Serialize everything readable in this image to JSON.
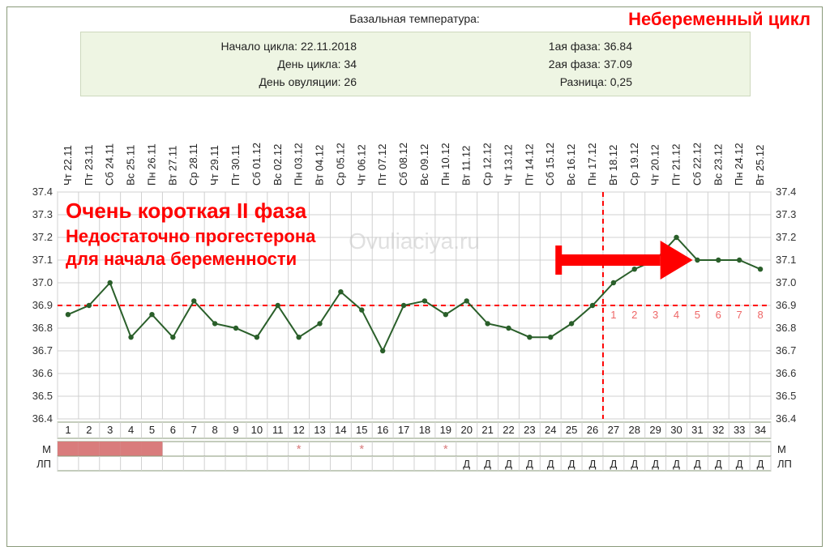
{
  "header": {
    "title": "Базальная температура:",
    "red_label": "Небеременный цикл"
  },
  "info": {
    "left": [
      "Начало цикла: 22.11.2018",
      "День цикла: 34",
      "День овуляции: 26"
    ],
    "right": [
      "1ая фаза: 36.84",
      "2ая фаза: 37.09",
      "Разница: 0,25"
    ]
  },
  "chart": {
    "type": "line",
    "watermark": "Ovuliaciya.ru",
    "annotation": {
      "line1": "Очень короткая II фаза",
      "line2": "Недостаточно прогестерона",
      "line3": "для начала беременности",
      "color": "#ff0000",
      "fontsize_l1": 26,
      "fontsize_rest": 22
    },
    "y": {
      "min": 36.4,
      "max": 37.4,
      "step": 0.1
    },
    "ovulation_day": 26,
    "coverline": 36.9,
    "series_color": "#2a5f2a",
    "coverline_color": "#ff0000",
    "ovline_color": "#ff0000",
    "grid_color": "#d0d0d0",
    "bg": "#ffffff",
    "border": "#8a9a7a",
    "menses_color": "#d97c7c",
    "star_color": "#d97c7c",
    "days": [
      {
        "n": 1,
        "dow": "Чт",
        "date": "22.11",
        "t": 36.86,
        "m": true
      },
      {
        "n": 2,
        "dow": "Пт",
        "date": "23.11",
        "t": 36.9,
        "m": true
      },
      {
        "n": 3,
        "dow": "Сб",
        "date": "24.11",
        "t": 37.0,
        "m": true
      },
      {
        "n": 4,
        "dow": "Вс",
        "date": "25.11",
        "t": 36.76,
        "m": true
      },
      {
        "n": 5,
        "dow": "Пн",
        "date": "26.11",
        "t": 36.86,
        "m": true
      },
      {
        "n": 6,
        "dow": "Вт",
        "date": "27.11",
        "t": 36.76
      },
      {
        "n": 7,
        "dow": "Ср",
        "date": "28.11",
        "t": 36.92
      },
      {
        "n": 8,
        "dow": "Чт",
        "date": "29.11",
        "t": 36.82
      },
      {
        "n": 9,
        "dow": "Пт",
        "date": "30.11",
        "t": 36.8
      },
      {
        "n": 10,
        "dow": "Сб",
        "date": "01.12",
        "t": 36.76
      },
      {
        "n": 11,
        "dow": "Вс",
        "date": "02.12",
        "t": 36.9
      },
      {
        "n": 12,
        "dow": "Пн",
        "date": "03.12",
        "t": 36.76,
        "star": true
      },
      {
        "n": 13,
        "dow": "Вт",
        "date": "04.12",
        "t": 36.82
      },
      {
        "n": 14,
        "dow": "Ср",
        "date": "05.12",
        "t": 36.96
      },
      {
        "n": 15,
        "dow": "Чт",
        "date": "06.12",
        "t": 36.88,
        "star": true
      },
      {
        "n": 16,
        "dow": "Пт",
        "date": "07.12",
        "t": 36.7
      },
      {
        "n": 17,
        "dow": "Сб",
        "date": "08.12",
        "t": 36.9
      },
      {
        "n": 18,
        "dow": "Вс",
        "date": "09.12",
        "t": 36.92
      },
      {
        "n": 19,
        "dow": "Пн",
        "date": "10.12",
        "t": 36.86,
        "star": true
      },
      {
        "n": 20,
        "dow": "Вт",
        "date": "11.12",
        "t": 36.92,
        "d": true
      },
      {
        "n": 21,
        "dow": "Ср",
        "date": "12.12",
        "t": 36.82,
        "d": true
      },
      {
        "n": 22,
        "dow": "Чт",
        "date": "13.12",
        "t": 36.8,
        "d": true
      },
      {
        "n": 23,
        "dow": "Пт",
        "date": "14.12",
        "t": 36.76,
        "d": true
      },
      {
        "n": 24,
        "dow": "Сб",
        "date": "15.12",
        "t": 36.76,
        "d": true
      },
      {
        "n": 25,
        "dow": "Вс",
        "date": "16.12",
        "t": 36.82,
        "d": true
      },
      {
        "n": 26,
        "dow": "Пн",
        "date": "17.12",
        "t": 36.9,
        "d": true
      },
      {
        "n": 27,
        "dow": "Вт",
        "date": "18.12",
        "t": 37.0,
        "d": true
      },
      {
        "n": 28,
        "dow": "Ср",
        "date": "19.12",
        "t": 37.06,
        "d": true
      },
      {
        "n": 29,
        "dow": "Чт",
        "date": "20.12",
        "t": 37.1,
        "d": true
      },
      {
        "n": 30,
        "dow": "Пт",
        "date": "21.12",
        "t": 37.2,
        "d": true
      },
      {
        "n": 31,
        "dow": "Сб",
        "date": "22.12",
        "t": 37.1,
        "d": true
      },
      {
        "n": 32,
        "dow": "Вс",
        "date": "23.12",
        "t": 37.1,
        "d": true
      },
      {
        "n": 33,
        "dow": "Пн",
        "date": "24.12",
        "t": 37.1,
        "d": true
      },
      {
        "n": 34,
        "dow": "Вт",
        "date": "25.12",
        "t": 37.06,
        "d": true
      }
    ],
    "row_labels": {
      "m": "М",
      "lp": "ЛП",
      "d_glyph": "Д"
    }
  }
}
